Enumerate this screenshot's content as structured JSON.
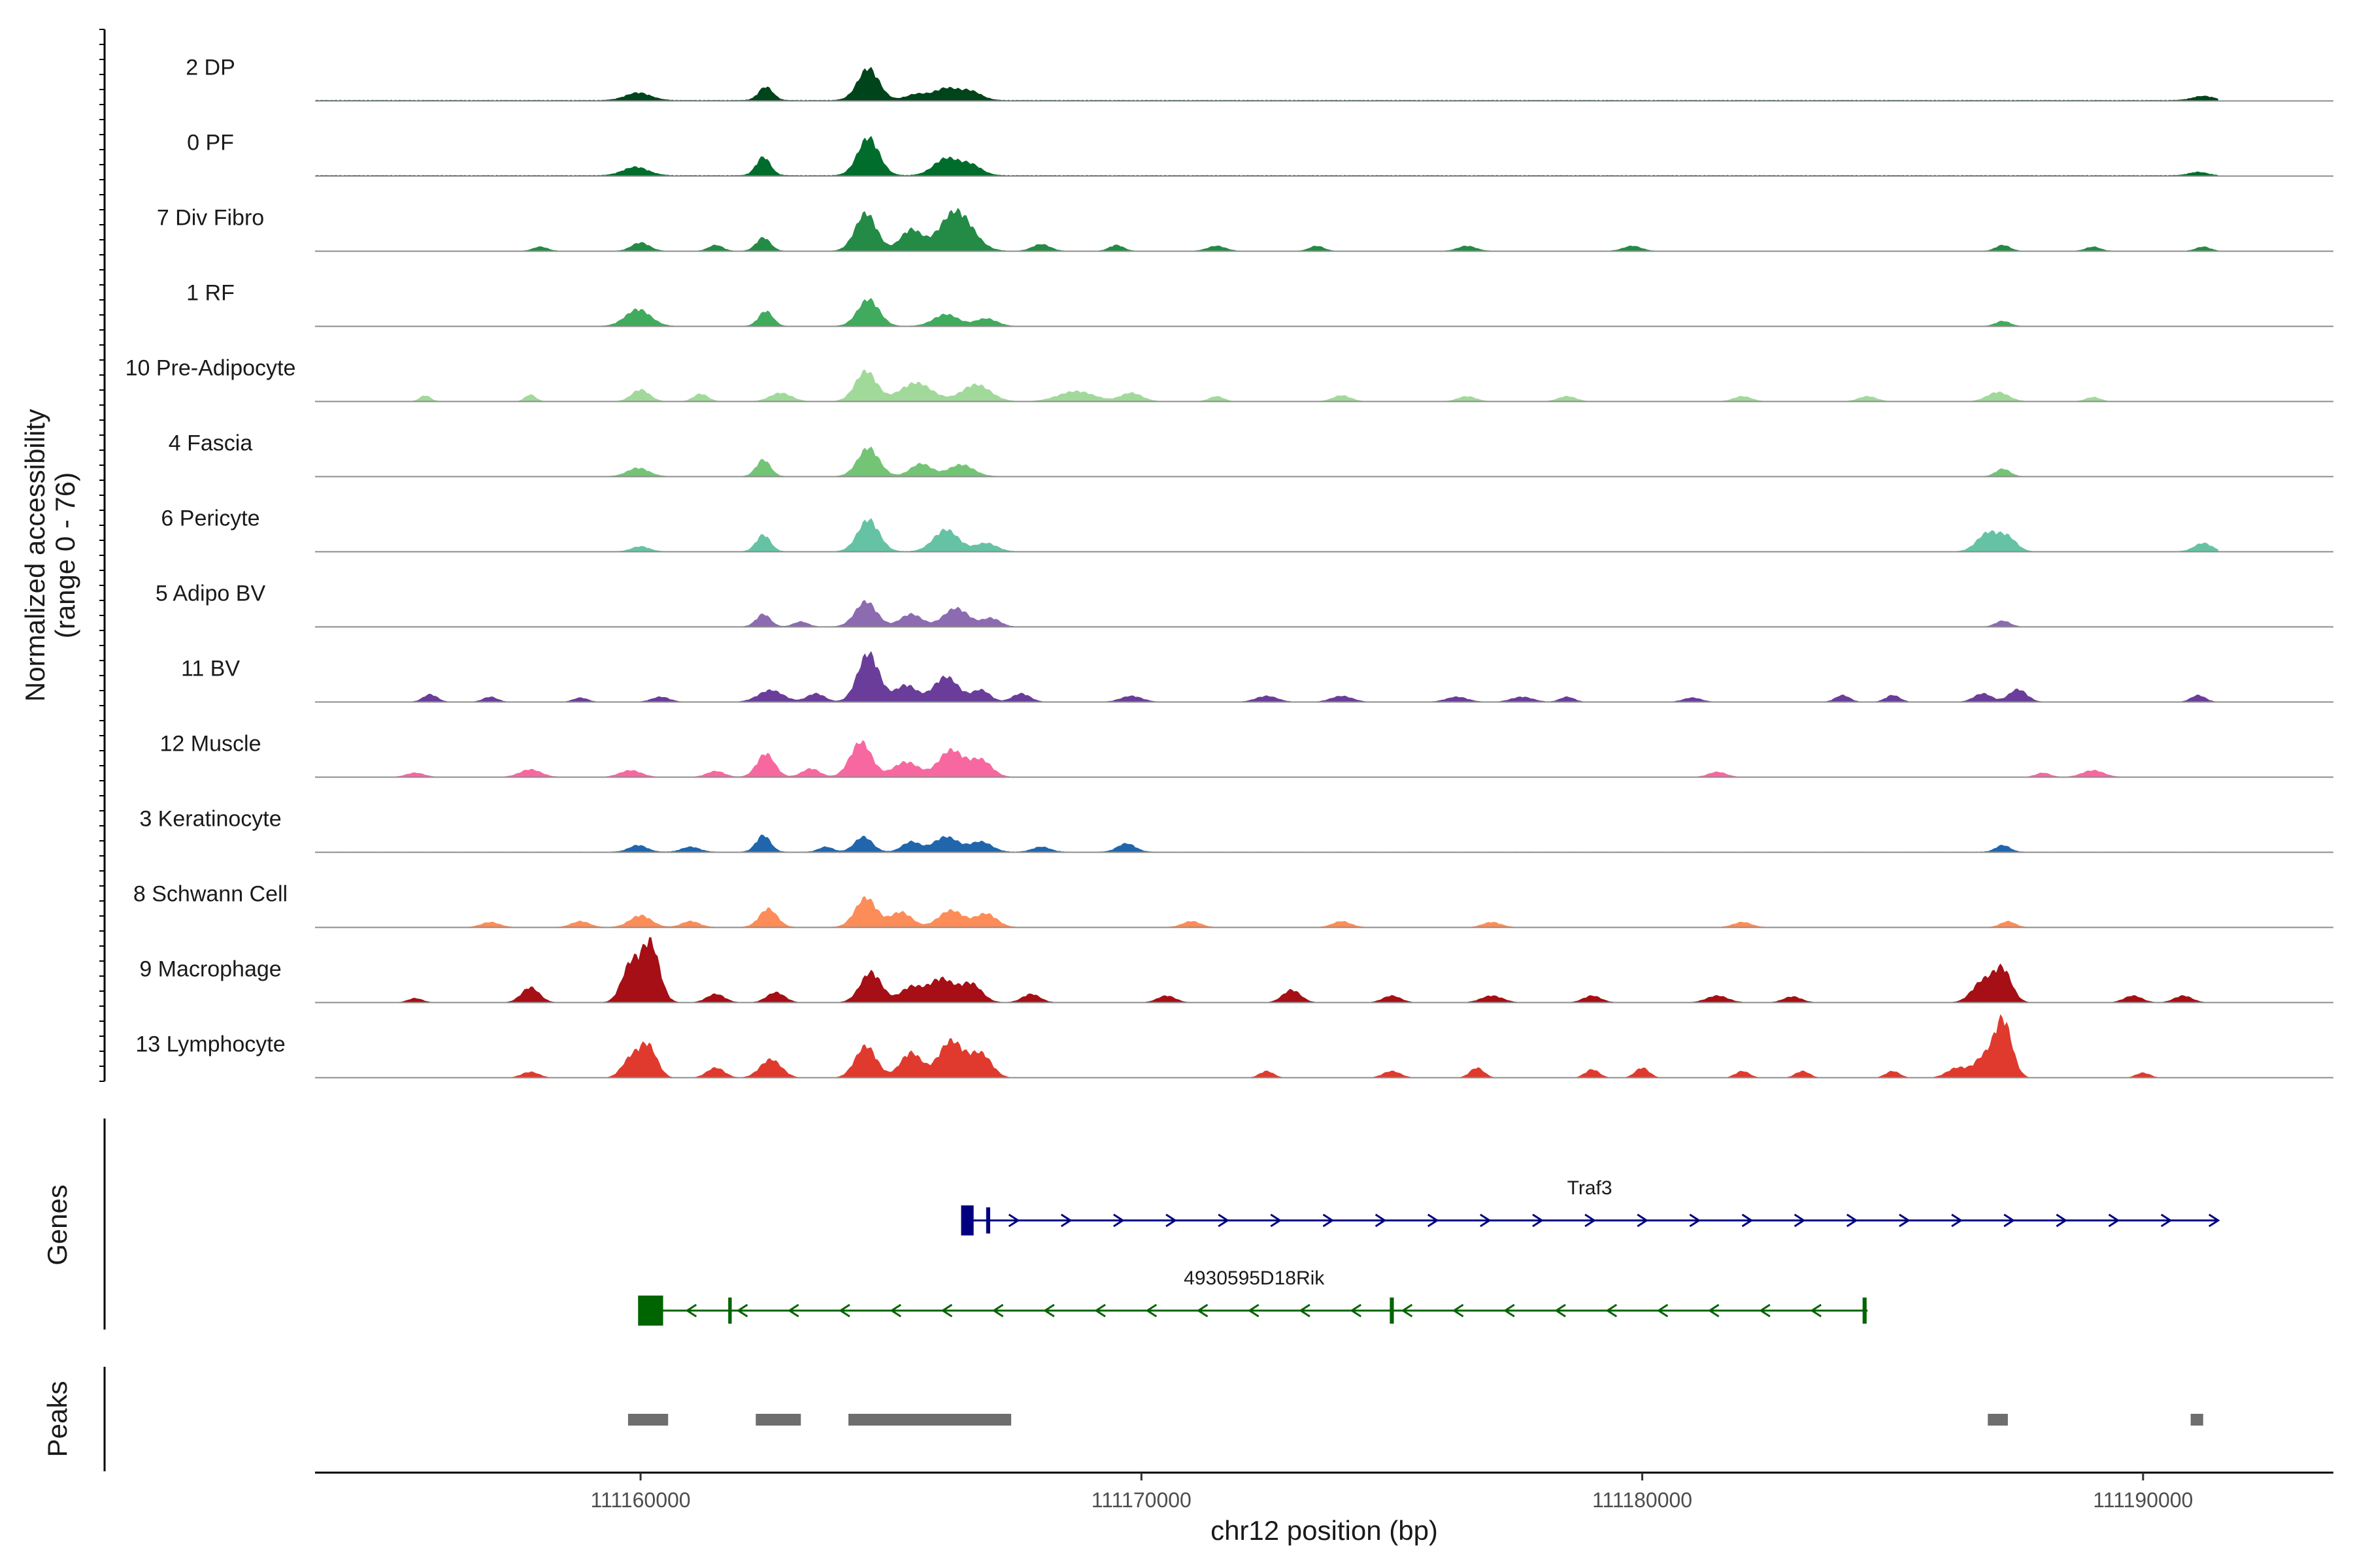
{
  "chart_data": {
    "type": "area",
    "title": "",
    "ylabel": "Normalized accessibility\n(range 0 - 76)",
    "y_range": [
      0,
      76
    ],
    "xlabel": "chr12 position (bp)",
    "xlim": [
      111153500,
      111193800
    ],
    "x_ticks": [
      111160000,
      111170000,
      111180000,
      111190000
    ],
    "x_tick_labels": [
      "111160000",
      "111170000",
      "111180000",
      "111190000"
    ],
    "track_span": [
      111153500,
      111191500
    ],
    "series": [
      {
        "name": "2 DP",
        "color": "#00441b",
        "baseline": 1.2,
        "peaks": [
          [
            111159950,
            350,
            9
          ],
          [
            111162500,
            200,
            16
          ],
          [
            111164550,
            300,
            38
          ],
          [
            111165500,
            300,
            7
          ],
          [
            111166100,
            350,
            14
          ],
          [
            111166600,
            300,
            10
          ],
          [
            111191200,
            300,
            5
          ]
        ]
      },
      {
        "name": "0 PF",
        "color": "#006d2c",
        "baseline": 1.2,
        "peaks": [
          [
            111159900,
            350,
            10
          ],
          [
            111162450,
            200,
            22
          ],
          [
            111164550,
            300,
            45
          ],
          [
            111166100,
            350,
            20
          ],
          [
            111166600,
            300,
            12
          ],
          [
            111191100,
            250,
            4
          ]
        ]
      },
      {
        "name": "7 Div Fibro",
        "color": "#238b45",
        "baseline": 0.6,
        "peaks": [
          [
            111158000,
            200,
            5
          ],
          [
            111160000,
            250,
            10
          ],
          [
            111161500,
            200,
            7
          ],
          [
            111162450,
            200,
            16
          ],
          [
            111164500,
            300,
            45
          ],
          [
            111165400,
            300,
            25
          ],
          [
            111166300,
            450,
            48
          ],
          [
            111168000,
            250,
            8
          ],
          [
            111169500,
            200,
            7
          ],
          [
            111171500,
            250,
            6
          ],
          [
            111173500,
            200,
            6
          ],
          [
            111176500,
            250,
            6
          ],
          [
            111179800,
            250,
            6
          ],
          [
            111187200,
            200,
            7
          ],
          [
            111189000,
            200,
            5
          ],
          [
            111191200,
            200,
            5
          ]
        ]
      },
      {
        "name": "1 RF",
        "color": "#41ab5d",
        "baseline": 0.6,
        "peaks": [
          [
            111159950,
            350,
            20
          ],
          [
            111162500,
            200,
            18
          ],
          [
            111164550,
            300,
            32
          ],
          [
            111166100,
            350,
            14
          ],
          [
            111166900,
            300,
            9
          ],
          [
            111187200,
            200,
            6
          ]
        ]
      },
      {
        "name": "10 Pre-Adipocyte",
        "color": "#a1d99b",
        "baseline": 0.4,
        "peaks": [
          [
            111155700,
            150,
            7
          ],
          [
            111157800,
            150,
            8
          ],
          [
            111160000,
            250,
            14
          ],
          [
            111161200,
            200,
            9
          ],
          [
            111162800,
            300,
            10
          ],
          [
            111164500,
            300,
            36
          ],
          [
            111165500,
            450,
            22
          ],
          [
            111166700,
            400,
            20
          ],
          [
            111168700,
            500,
            12
          ],
          [
            111169800,
            300,
            10
          ],
          [
            111171500,
            200,
            6
          ],
          [
            111174000,
            250,
            7
          ],
          [
            111176500,
            250,
            6
          ],
          [
            111178500,
            250,
            6
          ],
          [
            111182000,
            250,
            6
          ],
          [
            111184500,
            250,
            6
          ],
          [
            111187100,
            300,
            11
          ],
          [
            111189000,
            200,
            5
          ]
        ]
      },
      {
        "name": "4 Fascia",
        "color": "#74c476",
        "baseline": 0.6,
        "peaks": [
          [
            111159950,
            300,
            10
          ],
          [
            111162450,
            200,
            20
          ],
          [
            111164550,
            300,
            34
          ],
          [
            111165600,
            300,
            15
          ],
          [
            111166400,
            350,
            14
          ],
          [
            111187200,
            200,
            9
          ]
        ]
      },
      {
        "name": "6 Pericyte",
        "color": "#66c2a4",
        "baseline": 0.6,
        "peaks": [
          [
            111160000,
            250,
            6
          ],
          [
            111162450,
            200,
            20
          ],
          [
            111164550,
            300,
            38
          ],
          [
            111166100,
            350,
            26
          ],
          [
            111166900,
            300,
            10
          ],
          [
            111186900,
            300,
            22
          ],
          [
            111187300,
            250,
            16
          ],
          [
            111191200,
            250,
            10
          ]
        ]
      },
      {
        "name": "5 Adipo BV",
        "color": "#8c6bb1",
        "baseline": 0.6,
        "peaks": [
          [
            111162450,
            200,
            15
          ],
          [
            111163200,
            200,
            6
          ],
          [
            111164500,
            300,
            30
          ],
          [
            111165400,
            300,
            15
          ],
          [
            111166300,
            350,
            22
          ],
          [
            111167000,
            250,
            10
          ],
          [
            111187200,
            200,
            7
          ]
        ]
      },
      {
        "name": "11 BV",
        "color": "#6a3d9a",
        "baseline": 0.4,
        "peaks": [
          [
            111155800,
            200,
            9
          ],
          [
            111157000,
            200,
            6
          ],
          [
            111158800,
            200,
            5
          ],
          [
            111160400,
            250,
            6
          ],
          [
            111162600,
            350,
            14
          ],
          [
            111163500,
            250,
            10
          ],
          [
            111164550,
            300,
            58
          ],
          [
            111165300,
            300,
            20
          ],
          [
            111166100,
            350,
            30
          ],
          [
            111166800,
            250,
            14
          ],
          [
            111167600,
            250,
            10
          ],
          [
            111169800,
            300,
            7
          ],
          [
            111172500,
            300,
            7
          ],
          [
            111174000,
            300,
            7
          ],
          [
            111176300,
            300,
            6
          ],
          [
            111177600,
            300,
            6
          ],
          [
            111178500,
            200,
            6
          ],
          [
            111181000,
            250,
            5
          ],
          [
            111184000,
            200,
            8
          ],
          [
            111185000,
            200,
            8
          ],
          [
            111186800,
            250,
            10
          ],
          [
            111187500,
            250,
            15
          ],
          [
            111191100,
            200,
            8
          ]
        ]
      },
      {
        "name": "12 Muscle",
        "color": "#f768a1",
        "baseline": 0.4,
        "peaks": [
          [
            111155500,
            250,
            5
          ],
          [
            111157800,
            300,
            9
          ],
          [
            111159800,
            300,
            8
          ],
          [
            111161500,
            250,
            7
          ],
          [
            111162500,
            250,
            28
          ],
          [
            111163400,
            250,
            10
          ],
          [
            111164400,
            300,
            42
          ],
          [
            111165300,
            350,
            18
          ],
          [
            111166200,
            350,
            32
          ],
          [
            111166800,
            300,
            20
          ],
          [
            111181500,
            250,
            6
          ],
          [
            111188000,
            200,
            5
          ],
          [
            111189000,
            300,
            8
          ]
        ]
      },
      {
        "name": "3 Keratinocyte",
        "color": "#2166ac",
        "baseline": 0.8,
        "peaks": [
          [
            111159950,
            250,
            8
          ],
          [
            111161000,
            250,
            6
          ],
          [
            111162450,
            200,
            20
          ],
          [
            111163700,
            200,
            6
          ],
          [
            111164450,
            250,
            18
          ],
          [
            111165400,
            250,
            12
          ],
          [
            111166100,
            350,
            18
          ],
          [
            111166800,
            300,
            12
          ],
          [
            111168000,
            250,
            6
          ],
          [
            111169700,
            250,
            10
          ],
          [
            111187200,
            200,
            8
          ]
        ]
      },
      {
        "name": "8 Schwann Cell",
        "color": "#fc8d59",
        "baseline": 0.6,
        "peaks": [
          [
            111157000,
            250,
            6
          ],
          [
            111158800,
            250,
            7
          ],
          [
            111160000,
            300,
            14
          ],
          [
            111161000,
            250,
            7
          ],
          [
            111162550,
            250,
            22
          ],
          [
            111164500,
            300,
            35
          ],
          [
            111165200,
            300,
            18
          ],
          [
            111166200,
            350,
            20
          ],
          [
            111166900,
            300,
            16
          ],
          [
            111171000,
            250,
            7
          ],
          [
            111174000,
            250,
            7
          ],
          [
            111177000,
            250,
            6
          ],
          [
            111182000,
            250,
            6
          ],
          [
            111187300,
            200,
            7
          ]
        ]
      },
      {
        "name": "9 Macrophage",
        "color": "#a50f15",
        "baseline": 0.4,
        "peaks": [
          [
            111155500,
            200,
            5
          ],
          [
            111157800,
            250,
            18
          ],
          [
            111159800,
            250,
            45
          ],
          [
            111160200,
            250,
            70
          ],
          [
            111161500,
            250,
            10
          ],
          [
            111162700,
            250,
            12
          ],
          [
            111164600,
            300,
            36
          ],
          [
            111165400,
            300,
            18
          ],
          [
            111166000,
            350,
            28
          ],
          [
            111166600,
            300,
            22
          ],
          [
            111167800,
            250,
            10
          ],
          [
            111170500,
            250,
            8
          ],
          [
            111173000,
            250,
            15
          ],
          [
            111175000,
            250,
            8
          ],
          [
            111177000,
            300,
            8
          ],
          [
            111179000,
            250,
            8
          ],
          [
            111181500,
            300,
            8
          ],
          [
            111183000,
            250,
            7
          ],
          [
            111186800,
            300,
            25
          ],
          [
            111187200,
            250,
            38
          ],
          [
            111189800,
            250,
            8
          ],
          [
            111190800,
            250,
            8
          ]
        ]
      },
      {
        "name": "13 Lymphocyte",
        "color": "#e03a2e",
        "baseline": 0.0,
        "peaks": [
          [
            111157800,
            250,
            7
          ],
          [
            111159800,
            250,
            22
          ],
          [
            111160150,
            250,
            38
          ],
          [
            111161500,
            250,
            12
          ],
          [
            111162600,
            300,
            22
          ],
          [
            111164500,
            300,
            38
          ],
          [
            111165400,
            300,
            30
          ],
          [
            111166200,
            350,
            44
          ],
          [
            111166800,
            300,
            28
          ],
          [
            111172500,
            200,
            8
          ],
          [
            111175000,
            250,
            8
          ],
          [
            111176700,
            200,
            12
          ],
          [
            111179000,
            200,
            10
          ],
          [
            111180000,
            200,
            12
          ],
          [
            111182000,
            200,
            8
          ],
          [
            111183200,
            200,
            8
          ],
          [
            111185000,
            200,
            8
          ],
          [
            111186300,
            300,
            12
          ],
          [
            111186800,
            250,
            22
          ],
          [
            111187200,
            250,
            70
          ],
          [
            111190000,
            200,
            6
          ]
        ]
      }
    ],
    "genes": {
      "title": "Genes",
      "items": [
        {
          "name": "Traf3",
          "color": "#000080",
          "strand": "+",
          "start": 111166400,
          "end": 111191500,
          "exons": [
            [
              111166400,
              111166650
            ],
            [
              111166900,
              111166980
            ]
          ]
        },
        {
          "name": "4930595D18Rik",
          "color": "#006400",
          "strand": "-",
          "start": 111160000,
          "end": 111184500,
          "exons": [
            [
              111159950,
              111160450
            ],
            [
              111161750,
              111161820
            ],
            [
              111174960,
              111175040
            ],
            [
              111184400,
              111184480
            ]
          ]
        }
      ]
    },
    "peaks_track": {
      "title": "Peaks",
      "color": "#6e6e6e",
      "regions": [
        [
          111159750,
          111160550
        ],
        [
          111162300,
          111163200
        ],
        [
          111164150,
          111167400
        ],
        [
          111186900,
          111187300
        ],
        [
          111190950,
          111191200
        ]
      ]
    }
  }
}
